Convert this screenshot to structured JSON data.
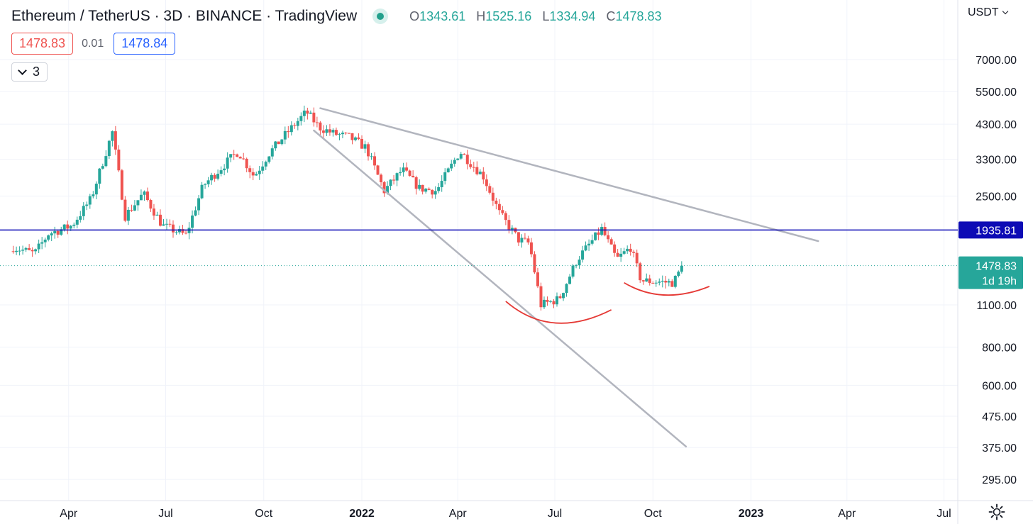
{
  "header": {
    "symbol": "Ethereum / TetherUS",
    "interval": "3D",
    "exchange": "BINANCE",
    "source": "TradingView",
    "ohlc": {
      "o_label": "O",
      "o": "1343.61",
      "h_label": "H",
      "h": "1525.16",
      "l_label": "L",
      "l": "1334.94",
      "c_label": "C",
      "c": "1478.83"
    }
  },
  "trading": {
    "bid": "1478.83",
    "spread": "0.01",
    "ask": "1478.84"
  },
  "indicators_toggle": {
    "count": "3"
  },
  "price_scale": {
    "currency": "USDT"
  },
  "chart_data": {
    "type": "candlestick",
    "y_scale": "log",
    "y_ticks": [
      "7000.00",
      "5500.00",
      "4300.00",
      "3300.00",
      "2500.00",
      "1100.00",
      "800.00",
      "600.00",
      "475.00",
      "375.00",
      "295.00"
    ],
    "x_ticks": [
      {
        "label": "Apr",
        "date": "2021-04-01"
      },
      {
        "label": "Jul",
        "date": "2021-07-01"
      },
      {
        "label": "Oct",
        "date": "2021-10-01"
      },
      {
        "label": "2022",
        "date": "2022-01-01",
        "year": true
      },
      {
        "label": "Apr",
        "date": "2022-04-01"
      },
      {
        "label": "Jul",
        "date": "2022-07-01"
      },
      {
        "label": "Oct",
        "date": "2022-10-01"
      },
      {
        "label": "2023",
        "date": "2023-01-01",
        "year": true
      },
      {
        "label": "Apr",
        "date": "2023-04-01"
      },
      {
        "label": "Jul",
        "date": "2023-07-01"
      }
    ],
    "horizontal_line": {
      "price": 1935.81,
      "label": "1935.81",
      "color": "#0d0bb5"
    },
    "last_price": {
      "price": 1478.83,
      "label": "1478.83",
      "countdown": "1d 19h",
      "color": "#26a69a"
    },
    "trendlines": [
      {
        "from": [
          "2021-11-23",
          4850
        ],
        "to": [
          "2023-03-05",
          1780
        ]
      },
      {
        "from": [
          "2021-11-17",
          4100
        ],
        "to": [
          "2022-11-01",
          378
        ]
      }
    ],
    "arcs": [
      {
        "from": [
          "2022-05-16",
          1130
        ],
        "to": [
          "2022-08-23",
          1060
        ],
        "bottom": [
          "2022-07-01",
          960
        ]
      },
      {
        "from": [
          "2022-09-04",
          1300
        ],
        "to": [
          "2022-11-23",
          1265
        ],
        "bottom": [
          "2022-10-12",
          1185
        ]
      }
    ],
    "anchors": [
      [
        "2021-02-08",
        1700
      ],
      [
        "2021-02-28",
        1620
      ],
      [
        "2021-03-13",
        1880
      ],
      [
        "2021-04-04",
        2000
      ],
      [
        "2021-04-22",
        2450
      ],
      [
        "2021-05-12",
        4050
      ],
      [
        "2021-05-24",
        2150
      ],
      [
        "2021-06-10",
        2550
      ],
      [
        "2021-06-28",
        2000
      ],
      [
        "2021-07-20",
        1860
      ],
      [
        "2021-08-05",
        2700
      ],
      [
        "2021-08-30",
        3300
      ],
      [
        "2021-09-07",
        3500
      ],
      [
        "2021-09-22",
        2900
      ],
      [
        "2021-10-06",
        3450
      ],
      [
        "2021-10-22",
        4000
      ],
      [
        "2021-11-10",
        4720
      ],
      [
        "2021-11-22",
        4200
      ],
      [
        "2021-12-06",
        4000
      ],
      [
        "2021-12-20",
        3900
      ],
      [
        "2022-01-05",
        3600
      ],
      [
        "2022-01-22",
        2600
      ],
      [
        "2022-02-08",
        3050
      ],
      [
        "2022-02-24",
        2650
      ],
      [
        "2022-03-12",
        2600
      ],
      [
        "2022-04-03",
        3500
      ],
      [
        "2022-04-25",
        2900
      ],
      [
        "2022-05-10",
        2200
      ],
      [
        "2022-05-28",
        1800
      ],
      [
        "2022-06-07",
        1750
      ],
      [
        "2022-06-18",
        1100
      ],
      [
        "2022-07-05",
        1150
      ],
      [
        "2022-07-22",
        1550
      ],
      [
        "2022-08-14",
        1950
      ],
      [
        "2022-08-28",
        1550
      ],
      [
        "2022-09-10",
        1700
      ],
      [
        "2022-09-20",
        1320
      ],
      [
        "2022-10-08",
        1310
      ],
      [
        "2022-10-20",
        1300
      ],
      [
        "2022-10-29",
        1478.83
      ]
    ]
  }
}
